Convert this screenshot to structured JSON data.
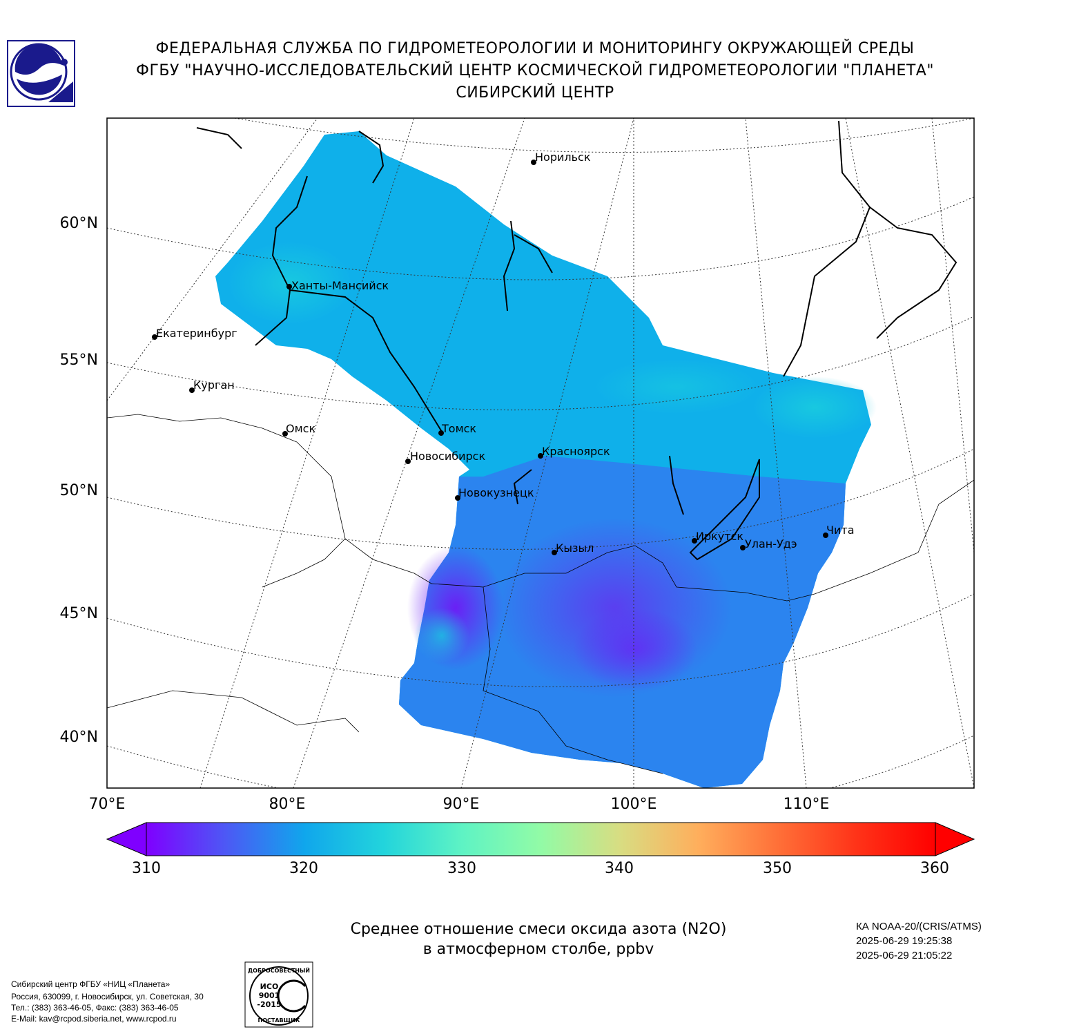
{
  "header": {
    "line1": "ФЕДЕРАЛЬНАЯ СЛУЖБА ПО ГИДРОМЕТЕОРОЛОГИИ И МОНИТОРИНГУ ОКРУЖАЮЩЕЙ СРЕДЫ",
    "line2": "ФГБУ \"НАУЧНО-ИССЛЕДОВАТЕЛЬСКИЙ ЦЕНТР КОСМИЧЕСКОЙ ГИДРОМЕТЕОРОЛОГИИ \"ПЛАНЕТА\"",
    "line3": "СИБИРСКИЙ ЦЕНТР"
  },
  "map": {
    "projection": "conic",
    "lat_labels": [
      "60°N",
      "55°N",
      "50°N",
      "45°N",
      "40°N"
    ],
    "lon_labels": [
      "70°E",
      "80°E",
      "90°E",
      "100°E",
      "110°E"
    ],
    "cities": [
      {
        "name": "Норильск",
        "lon": 88.2,
        "lat": 69.3
      },
      {
        "name": "Ханты-Мансийск",
        "lon": 69.0,
        "lat": 61.0
      },
      {
        "name": "Екатеринбург",
        "lon": 60.6,
        "lat": 56.8
      },
      {
        "name": "Курган",
        "lon": 65.3,
        "lat": 55.4
      },
      {
        "name": "Омск",
        "lon": 73.4,
        "lat": 55.0
      },
      {
        "name": "Томск",
        "lon": 85.0,
        "lat": 56.5
      },
      {
        "name": "Новосибирск",
        "lon": 82.9,
        "lat": 55.0
      },
      {
        "name": "Красноярск",
        "lon": 92.9,
        "lat": 56.0
      },
      {
        "name": "Новокузнецк",
        "lon": 87.1,
        "lat": 53.8
      },
      {
        "name": "Кызыл",
        "lon": 94.4,
        "lat": 51.7
      },
      {
        "name": "Иркутск",
        "lon": 104.3,
        "lat": 52.3
      },
      {
        "name": "Улан-Удэ",
        "lon": 107.6,
        "lat": 51.8
      },
      {
        "name": "Чита",
        "lon": 113.5,
        "lat": 52.0
      }
    ]
  },
  "colorbar": {
    "min": 310,
    "max": 360,
    "ticks": [
      "310",
      "320",
      "330",
      "340",
      "350",
      "360"
    ],
    "colors": [
      "#7f00ff",
      "#4a5ef4",
      "#00b4ec",
      "#4cf2ce",
      "#b1f993",
      "#ffb360",
      "#ff0000"
    ]
  },
  "title": {
    "line1": "Среднее отношение смеси оксида азота (N2O)",
    "line2": "в атмосферном столбе, ppbv"
  },
  "satellite": {
    "name": "КА NOAA-20/(CRIS/ATMS)",
    "start": "2025-06-29 19:25:38",
    "end": "2025-06-29 21:05:22"
  },
  "footer": {
    "line1": "Сибирский центр ФГБУ «НИЦ «Планета»",
    "line2": "Россия, 630099, г. Новосибирск, ул. Советская, 30",
    "line3": "Тел.: (383) 363-46-05, Факс: (383) 363-46-05",
    "line4": "E-Mail: kav@rcpod.siberia.net, www.rcpod.ru"
  },
  "iso_stamp": {
    "top": "ДОБРОСОВЕСТНЫЙ",
    "l1": "ИСО",
    "l2": "9001",
    "l3": "-2015",
    "bottom": "ПОСТАВЩИК"
  }
}
